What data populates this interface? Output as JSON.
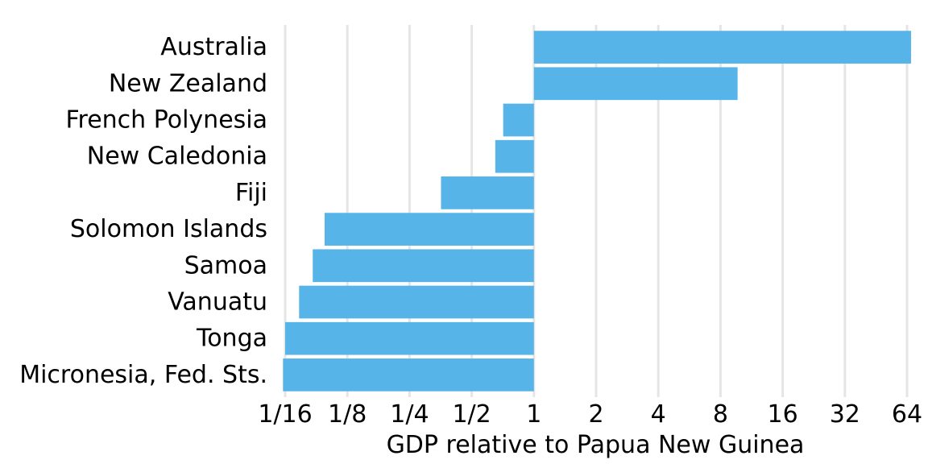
{
  "chart_data": {
    "type": "bar",
    "orientation": "horizontal",
    "xscale": "log2",
    "baseline": 1,
    "xlabel": "GDP relative to Papua New Guinea",
    "ylabel": "",
    "title": "",
    "xlim": [
      0.0625,
      64
    ],
    "xticks": [
      {
        "value": 0.0625,
        "label": "1/16"
      },
      {
        "value": 0.125,
        "label": "1/8"
      },
      {
        "value": 0.25,
        "label": "1/4"
      },
      {
        "value": 0.5,
        "label": "1/2"
      },
      {
        "value": 1,
        "label": "1"
      },
      {
        "value": 2,
        "label": "2"
      },
      {
        "value": 4,
        "label": "4"
      },
      {
        "value": 8,
        "label": "8"
      },
      {
        "value": 16,
        "label": "16"
      },
      {
        "value": 32,
        "label": "32"
      },
      {
        "value": 64,
        "label": "64"
      }
    ],
    "categories": [
      "Australia",
      "New Zealand",
      "French Polynesia",
      "New Caledonia",
      "Fiji",
      "Solomon Islands",
      "Samoa",
      "Vanuatu",
      "Tonga",
      "Micronesia, Fed. Sts."
    ],
    "values": [
      66.9,
      9.68,
      0.71,
      0.65,
      0.355,
      0.097,
      0.085,
      0.073,
      0.0625,
      0.061
    ],
    "grid": true,
    "bar_color": "#56b4e9",
    "grid_color": "#e5e5e5"
  }
}
